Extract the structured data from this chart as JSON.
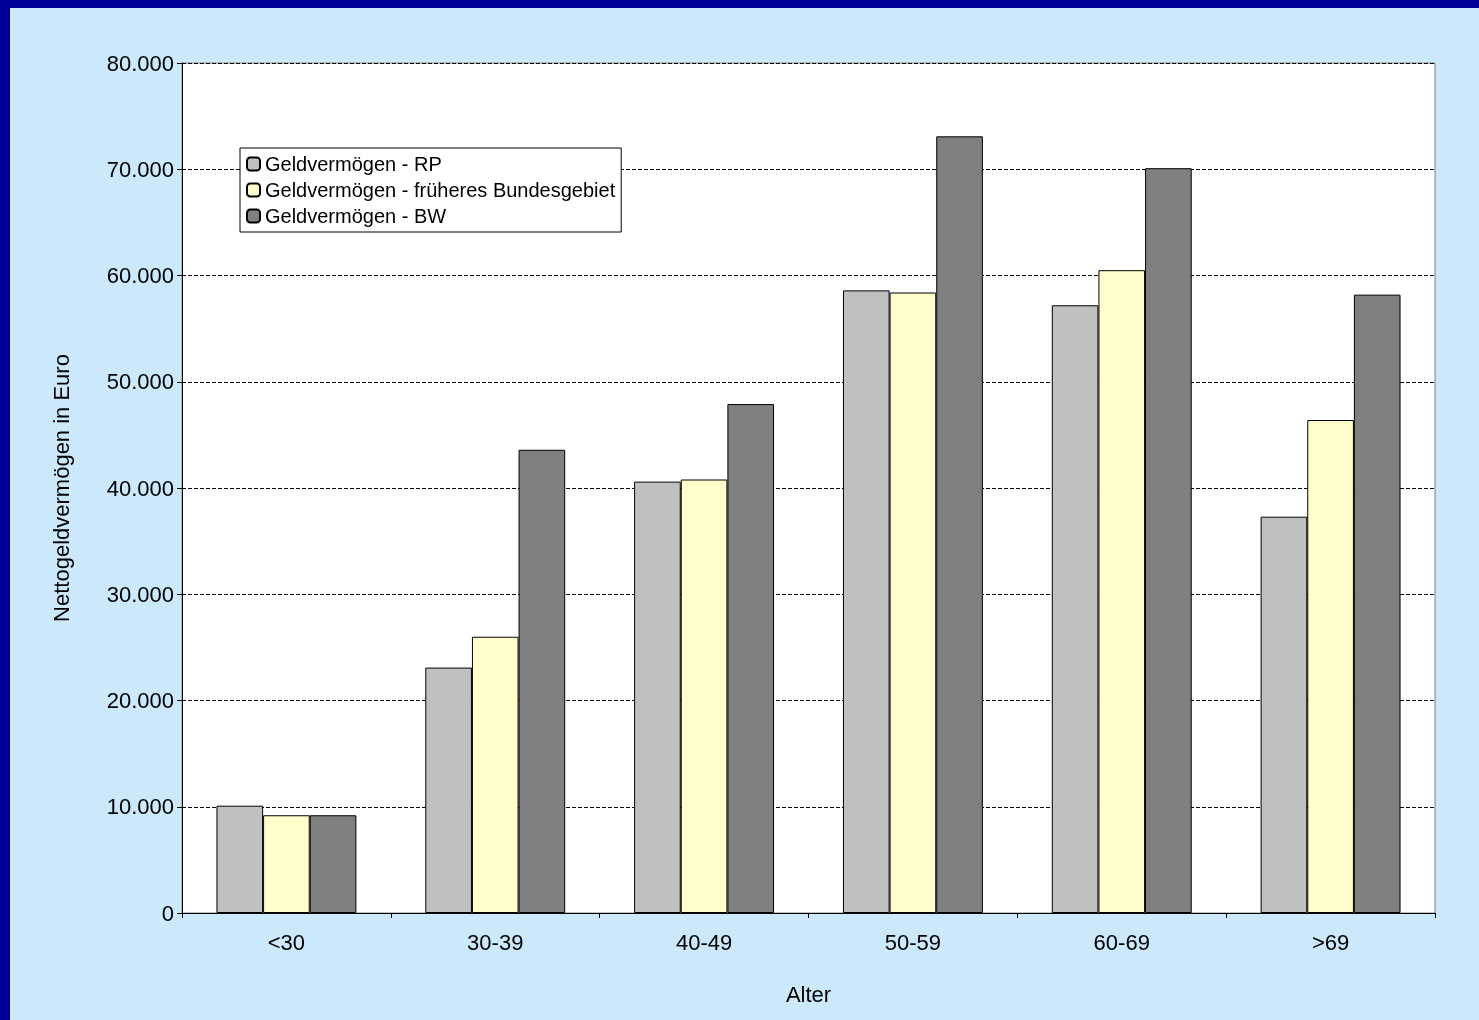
{
  "chart_data": {
    "type": "bar",
    "xlabel": "Alter",
    "ylabel": "Nettogeldvermögen in Euro",
    "categories": [
      "<30",
      "30-39",
      "40-49",
      "50-59",
      "60-69",
      ">69"
    ],
    "series": [
      {
        "name": "Geldvermögen - RP",
        "color": "#c0c0c0",
        "values": [
          10100,
          23100,
          40600,
          58600,
          57200,
          37300
        ]
      },
      {
        "name": "Geldvermögen - früheres Bundesgebiet",
        "color": "#ffffcc",
        "values": [
          9200,
          26000,
          40800,
          58400,
          60500,
          46400
        ]
      },
      {
        "name": "Geldvermögen - BW",
        "color": "#808080",
        "values": [
          9200,
          43600,
          47900,
          73100,
          70100,
          58200
        ]
      }
    ],
    "ylim": [
      0,
      80000
    ],
    "yticks": [
      0,
      {
        "value": 10000,
        "label": "10.000"
      },
      {
        "value": 20000,
        "label": "20.000"
      },
      {
        "value": 30000,
        "label": "30.000"
      },
      {
        "value": 40000,
        "label": "40.000"
      },
      {
        "value": 50000,
        "label": "50.000"
      },
      {
        "value": 60000,
        "label": "60.000"
      },
      {
        "value": 70000,
        "label": "70.000"
      },
      {
        "value": 80000,
        "label": "80.000"
      }
    ],
    "grid": "y",
    "legend": "top left"
  }
}
